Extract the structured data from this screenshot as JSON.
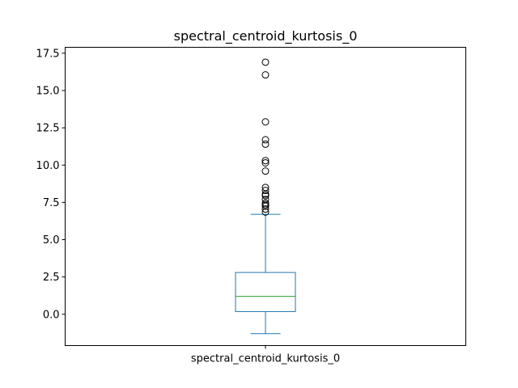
{
  "chart_data": {
    "type": "box",
    "title": "spectral_centroid_kurtosis_0",
    "xlabel": "",
    "ylabel": "",
    "categories": [
      "spectral_centroid_kurtosis_0"
    ],
    "ylim": [
      -2.1,
      17.9
    ],
    "yticks": [
      0.0,
      2.5,
      5.0,
      7.5,
      10.0,
      12.5,
      15.0,
      17.5
    ],
    "ytick_labels": [
      "0.0",
      "2.5",
      "5.0",
      "7.5",
      "10.0",
      "12.5",
      "15.0",
      "17.5"
    ],
    "grid": false,
    "legend": "none",
    "box": {
      "whisker_low": -1.3,
      "q1": 0.18,
      "median": 1.2,
      "q3": 2.8,
      "whisker_high": 6.7
    },
    "outliers": [
      6.85,
      7.05,
      7.25,
      7.35,
      7.45,
      7.7,
      7.95,
      8.05,
      8.3,
      8.5,
      9.6,
      10.15,
      10.3,
      11.4,
      11.7,
      12.9,
      16.05,
      16.9
    ],
    "colors": {
      "box": "#1f77b4",
      "median": "#2ca02c",
      "outlier": "#000000"
    }
  }
}
